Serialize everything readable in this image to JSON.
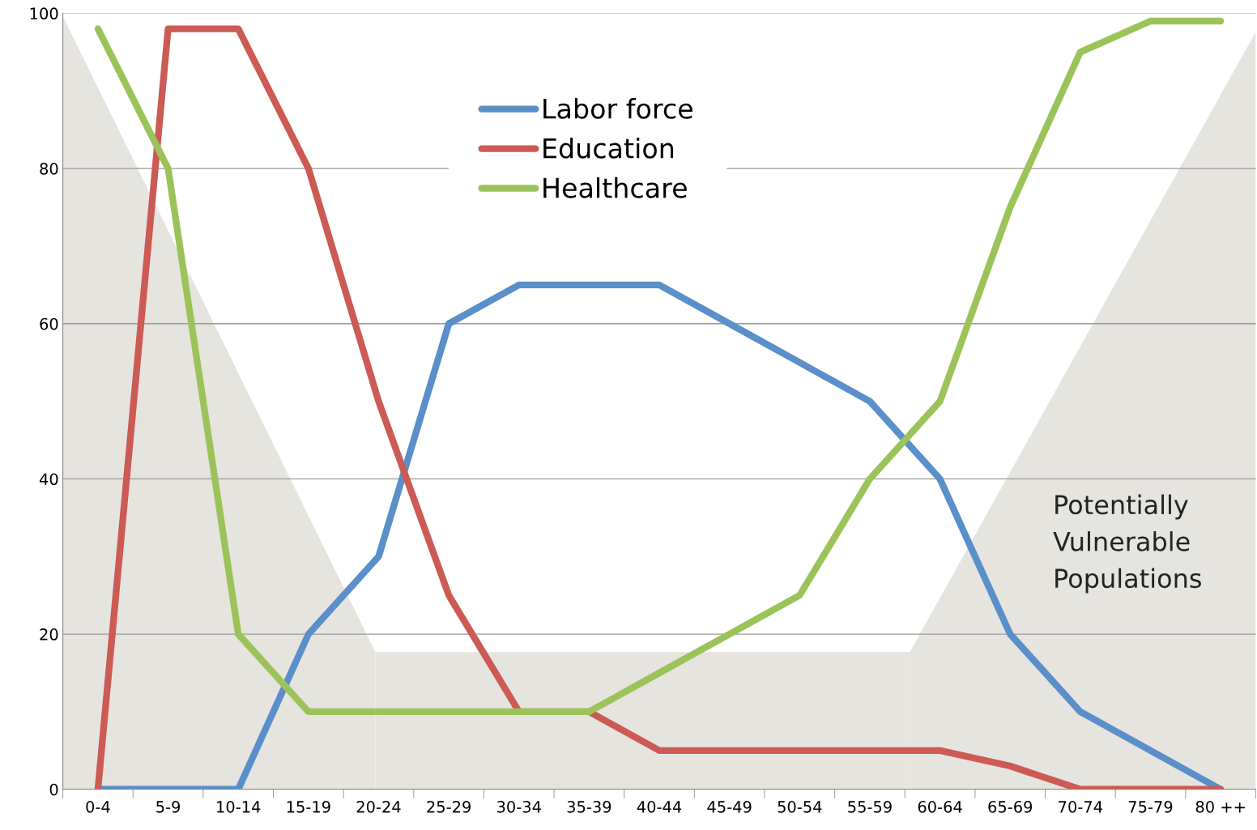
{
  "chart_data": {
    "type": "line",
    "categories": [
      "0-4",
      "5-9",
      "10-14",
      "15-19",
      "20-24",
      "25-29",
      "30-34",
      "35-39",
      "40-44",
      "45-49",
      "50-54",
      "55-59",
      "60-64",
      "65-69",
      "70-74",
      "75-79",
      "80 ++"
    ],
    "series": [
      {
        "name": "Labor force",
        "color": "#5b8fc9",
        "values": [
          0,
          0,
          0,
          20,
          30,
          60,
          65,
          65,
          65,
          60,
          55,
          50,
          40,
          20,
          10,
          5,
          0
        ]
      },
      {
        "name": "Education",
        "color": "#cc5a55",
        "values": [
          0,
          98,
          98,
          80,
          50,
          25,
          10,
          10,
          5,
          5,
          5,
          5,
          5,
          3,
          0,
          0,
          0
        ]
      },
      {
        "name": "Healthcare",
        "color": "#9cc35a",
        "values": [
          98,
          80,
          20,
          10,
          10,
          10,
          10,
          10,
          15,
          20,
          25,
          40,
          50,
          75,
          95,
          99,
          99
        ]
      }
    ],
    "ylim": [
      0,
      100
    ],
    "yticks": [
      0,
      20,
      40,
      60,
      80,
      100
    ],
    "grid": "y",
    "legend": "top",
    "marker": "none",
    "line_style": "solid",
    "annotations": [
      "Potentially\nVulnerable\nPopulations"
    ]
  }
}
